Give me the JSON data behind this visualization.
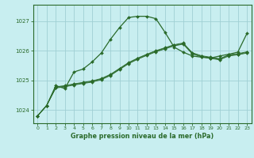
{
  "title": "Graphe pression niveau de la mer (hPa)",
  "background_color": "#c8eef0",
  "grid_color": "#a0d0d4",
  "line_color": "#2a6a2a",
  "xlim": [
    -0.5,
    23.5
  ],
  "ylim": [
    1023.55,
    1027.55
  ],
  "yticks": [
    1024,
    1025,
    1026,
    1027
  ],
  "xticks": [
    0,
    1,
    2,
    3,
    4,
    5,
    6,
    7,
    8,
    9,
    10,
    11,
    12,
    13,
    14,
    15,
    16,
    17,
    18,
    19,
    20,
    21,
    22,
    23
  ],
  "series_main": [
    1023.8,
    1024.15,
    1024.82,
    1024.72,
    1025.28,
    1025.38,
    1025.62,
    1025.92,
    1026.38,
    1026.78,
    1027.12,
    1027.16,
    1027.16,
    1027.08,
    1026.62,
    1026.12,
    1025.95,
    1025.82,
    1025.78,
    1025.75,
    1025.82,
    1025.88,
    1025.95,
    1026.58
  ],
  "series_ref1": [
    1023.8,
    1024.15,
    1024.78,
    1024.82,
    1024.88,
    1024.93,
    1024.98,
    1025.06,
    1025.2,
    1025.4,
    1025.6,
    1025.75,
    1025.88,
    1026.0,
    1026.1,
    1026.2,
    1026.26,
    1025.93,
    1025.83,
    1025.78,
    1025.73,
    1025.86,
    1025.9,
    1025.96
  ],
  "series_ref2": [
    1023.8,
    1024.15,
    1024.76,
    1024.8,
    1024.86,
    1024.91,
    1024.96,
    1025.04,
    1025.18,
    1025.38,
    1025.58,
    1025.73,
    1025.86,
    1025.98,
    1026.08,
    1026.18,
    1026.24,
    1025.91,
    1025.81,
    1025.76,
    1025.71,
    1025.84,
    1025.88,
    1025.94
  ],
  "series_ref3": [
    1023.8,
    1024.15,
    1024.74,
    1024.78,
    1024.84,
    1024.89,
    1024.94,
    1025.02,
    1025.16,
    1025.36,
    1025.56,
    1025.71,
    1025.84,
    1025.96,
    1026.06,
    1026.16,
    1026.22,
    1025.89,
    1025.79,
    1025.74,
    1025.69,
    1025.82,
    1025.86,
    1025.92
  ]
}
